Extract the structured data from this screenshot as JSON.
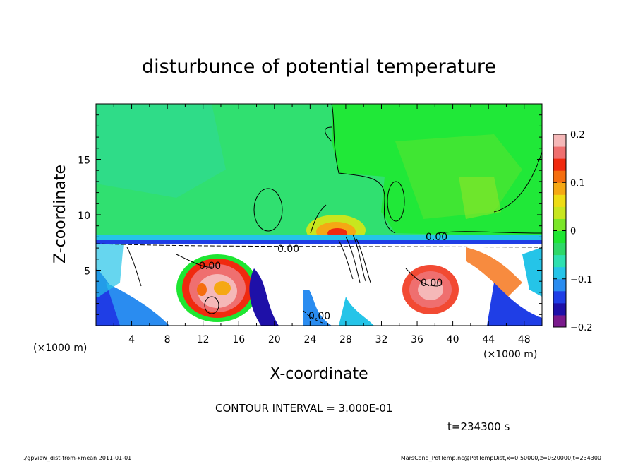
{
  "chart_data": {
    "type": "heatmap",
    "title": "disturbunce of potential temperature",
    "xlabel": "X-coordinate",
    "ylabel": "Z-coordinate",
    "x_unit_label": "(×1000 m)",
    "y_unit_label": "(×1000 m)",
    "xlim": [
      0,
      50
    ],
    "ylim": [
      0,
      20
    ],
    "x_ticks": [
      "4",
      "8",
      "12",
      "16",
      "20",
      "24",
      "28",
      "32",
      "36",
      "40",
      "44",
      "48"
    ],
    "y_ticks": [
      "5",
      "10",
      "15"
    ],
    "colorbar": {
      "ticks": [
        "0.2",
        "0.1",
        "0",
        "−0.1",
        "−0.2"
      ],
      "range": [
        -0.2,
        0.2
      ],
      "colors": [
        "#7a1a8c",
        "#1e10a8",
        "#1f3ee6",
        "#2a8cf0",
        "#25c4e8",
        "#2ee0b0",
        "#2ed868",
        "#1ee632",
        "#7be628",
        "#c8e61e",
        "#eedc14",
        "#f5a814",
        "#f56e0f",
        "#f02a0f",
        "#ef6f6f",
        "#f5b8b8"
      ]
    },
    "contour_labels": [
      "0.00",
      "0.00",
      "0.00",
      "0.00",
      "0.00"
    ],
    "contour_interval_text": "CONTOUR INTERVAL = 3.000E-01",
    "time_text": "t=234300 s"
  },
  "footer": {
    "left": "./gpview_dist-from-xmean  2011-01-01",
    "right": "MarsCond_PotTemp.nc@PotTempDist,x=0:50000,z=0:20000,t=234300"
  }
}
